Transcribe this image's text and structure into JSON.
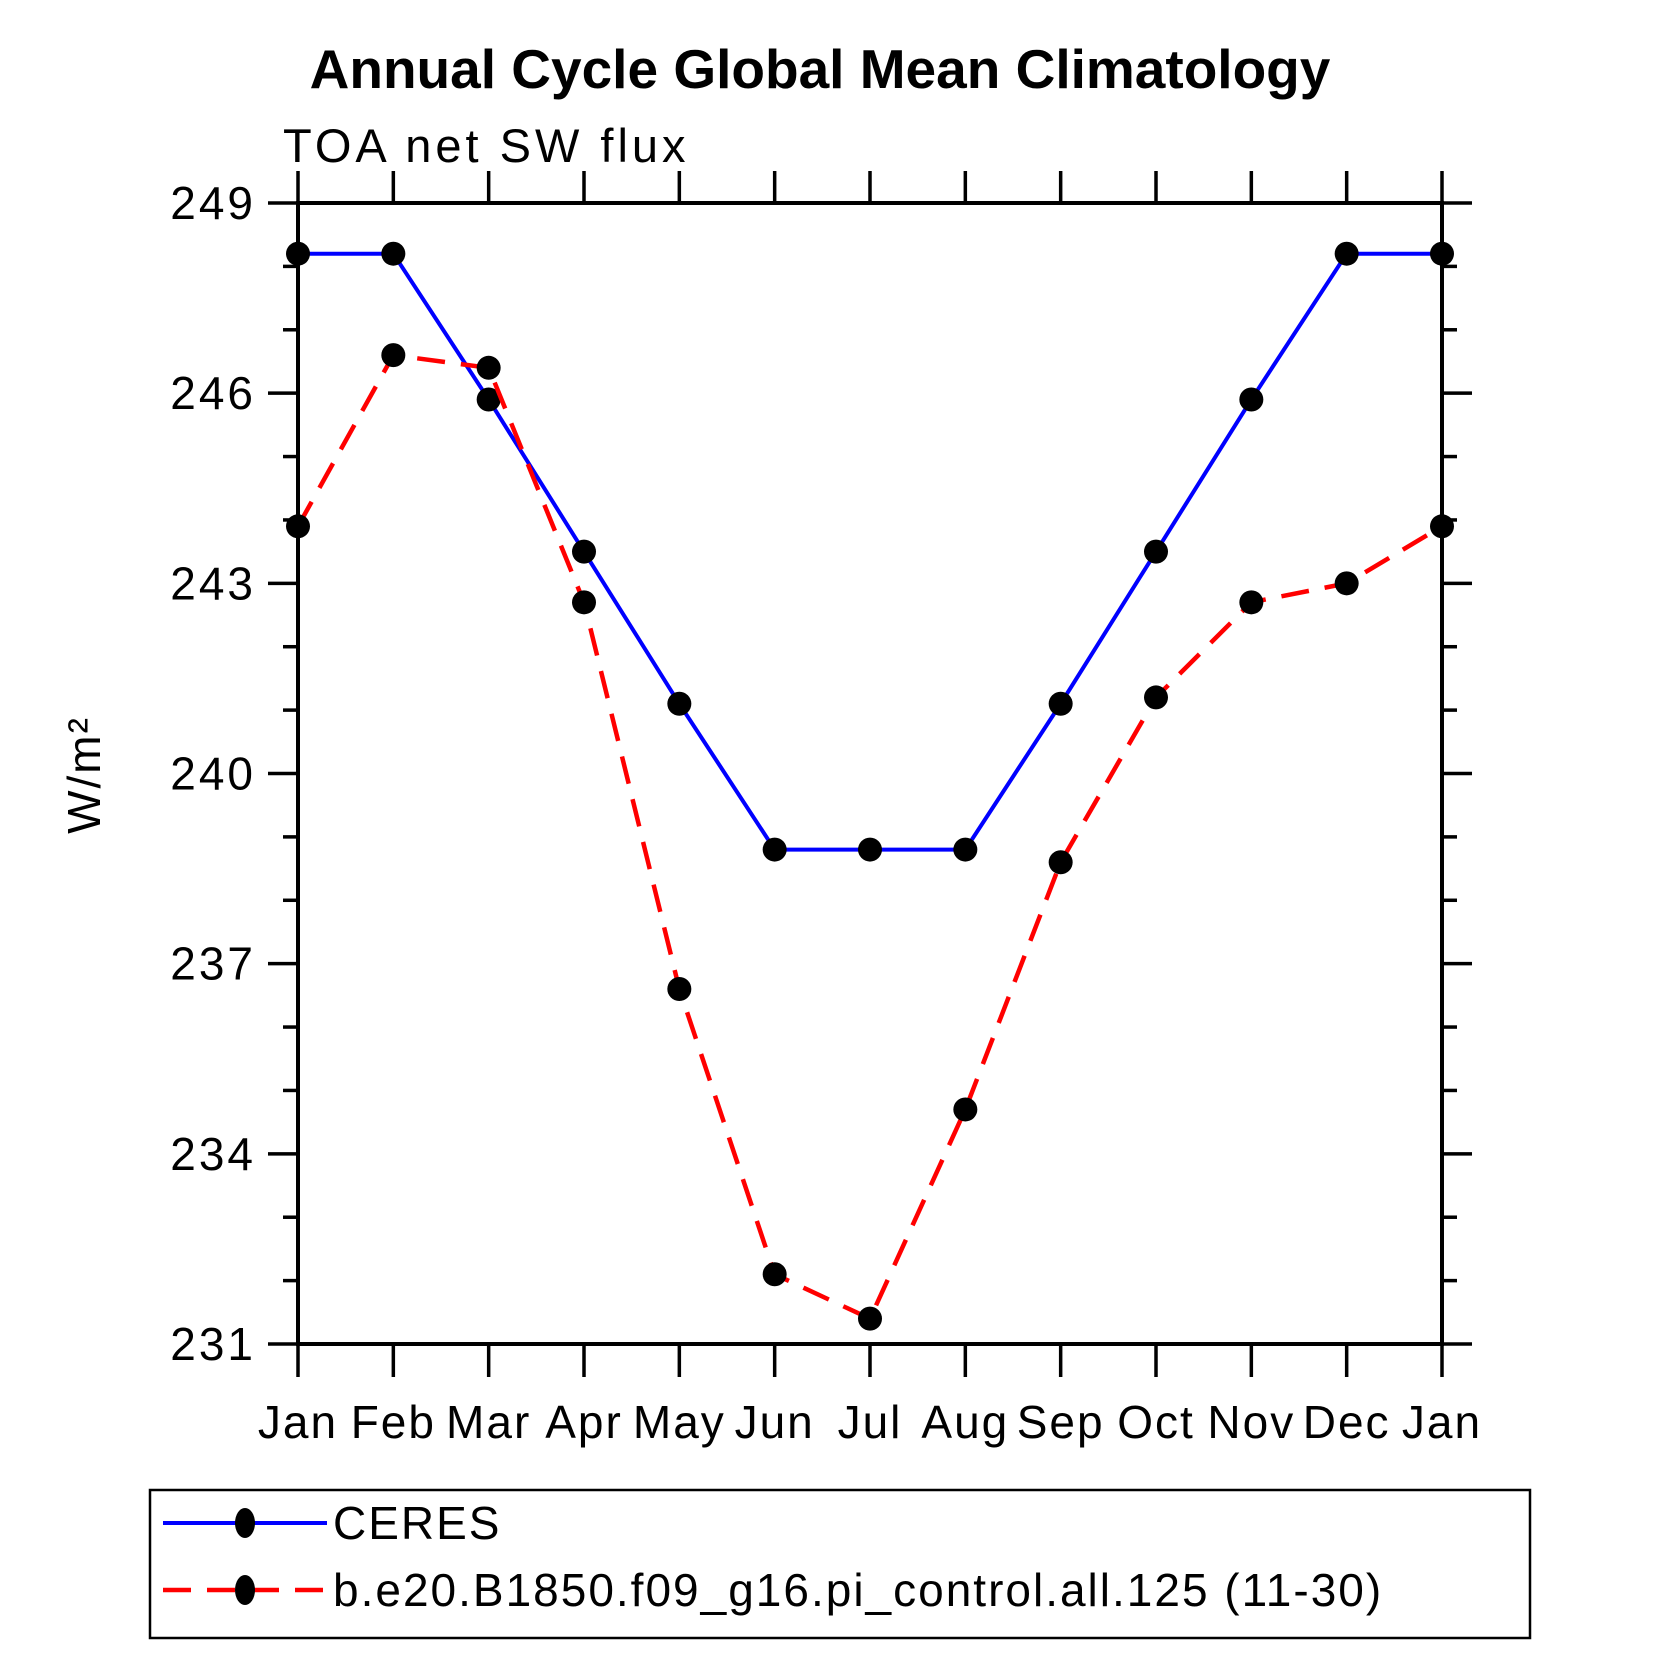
{
  "title": "Annual Cycle Global Mean Climatology",
  "subtitle": "TOA net SW flux",
  "ylabel": "W/m²",
  "chart_data": {
    "type": "line",
    "categories": [
      "Jan",
      "Feb",
      "Mar",
      "Apr",
      "May",
      "Jun",
      "Jul",
      "Aug",
      "Sep",
      "Oct",
      "Nov",
      "Dec",
      "Jan"
    ],
    "series": [
      {
        "name": "CERES",
        "color": "#0000ff",
        "line_style": "solid",
        "marker": "filled-circle",
        "marker_color": "#000000",
        "values": [
          248.2,
          248.2,
          245.9,
          243.5,
          241.1,
          238.8,
          238.8,
          238.8,
          241.1,
          243.5,
          245.9,
          248.2,
          248.2
        ]
      },
      {
        "name": "b.e20.B1850.f09_g16.pi_control.all.125 (11-30)",
        "color": "#ff0000",
        "line_style": "dashed",
        "marker": "filled-circle",
        "marker_color": "#000000",
        "values": [
          243.9,
          246.6,
          246.4,
          242.7,
          236.6,
          232.1,
          231.4,
          234.7,
          238.6,
          241.2,
          242.7,
          243.0,
          243.9
        ]
      }
    ],
    "xlabel": "",
    "ylim": [
      231,
      249
    ],
    "y_major_ticks": [
      231,
      234,
      237,
      240,
      243,
      246,
      249
    ],
    "y_minor_step": 1,
    "grid": "off",
    "legend_position": "bottom-left-box"
  }
}
